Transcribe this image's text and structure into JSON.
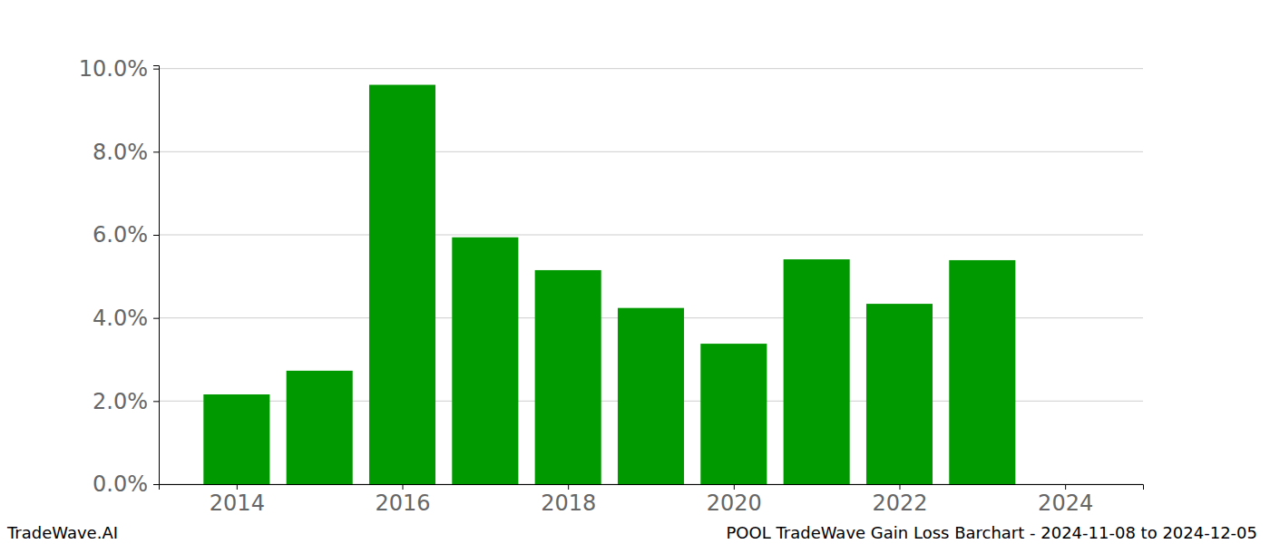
{
  "chart_data": {
    "type": "bar",
    "title": "POOL TradeWave Gain Loss Barchart - 2024-11-08 to 2024-12-05",
    "source": "TradeWave.AI",
    "x": [
      2014,
      2015,
      2016,
      2017,
      2018,
      2019,
      2020,
      2021,
      2022,
      2023,
      2024
    ],
    "values": [
      2.16,
      2.73,
      9.61,
      5.94,
      5.15,
      4.24,
      3.38,
      5.41,
      4.34,
      5.39,
      0
    ],
    "color": "#009900",
    "xlim": [
      2013.06,
      2024.94
    ],
    "xticks": [
      2014,
      2016,
      2018,
      2020,
      2022,
      2024
    ],
    "ylim": [
      0,
      10.08
    ],
    "yticks": [
      {
        "value": 0,
        "label": "0.0%"
      },
      {
        "value": 2,
        "label": "2.0%"
      },
      {
        "value": 4,
        "label": "4.0%"
      },
      {
        "value": 6,
        "label": "6.0%"
      },
      {
        "value": 8,
        "label": "8.0%"
      },
      {
        "value": 10,
        "label": "10.0%"
      }
    ],
    "grid": true
  }
}
